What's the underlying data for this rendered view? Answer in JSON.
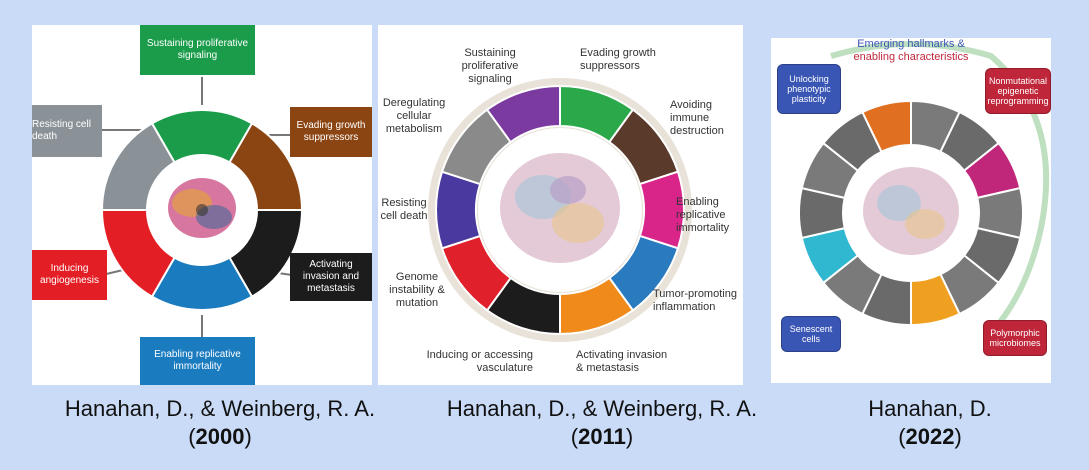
{
  "panels": {
    "p2000": {
      "labels": {
        "top": "Sustaining proliferative signaling",
        "left_top": "Resisting cell death",
        "right_top": "Evading growth suppressors",
        "left_bottom": "Inducing angiogenesis",
        "right_bottom": "Activating invasion and metastasis",
        "bottom": "Enabling replicative immortality"
      },
      "colors": {
        "top": "#1a9c4a",
        "right_top": "#8b4513",
        "right_bottom": "#1c1c1c",
        "bottom": "#1a7bbf",
        "left_bottom": "#e31e24",
        "left_top": "#8a9298"
      }
    },
    "p2011": {
      "labels": {
        "sustaining": "Sustaining proliferative signaling",
        "evading": "Evading growth suppressors",
        "avoiding": "Avoiding immune destruction",
        "enabling": "Enabling replicative immortality",
        "tumor": "Tumor-promoting inflammation",
        "activating": "Activating invasion & metastasis",
        "inducing": "Inducing or accessing vasculature",
        "genome": "Genome instability & mutation",
        "resisting": "Resisting cell death",
        "deregulating": "Deregulating cellular metabolism"
      }
    },
    "p2022": {
      "title_line1": "Emerging hallmarks &",
      "title_line2": "enabling characteristics",
      "labels": {
        "unlocking": "Unlocking phenotypic plasticity",
        "nonmutational": "Nonmutational epigenetic reprogramming",
        "senescent": "Senescent cells",
        "polymorphic": "Polymorphic microbiomes"
      },
      "colors": {
        "unlocking": "#3a56b5",
        "nonmutational": "#c0263a",
        "senescent": "#3a56b5",
        "polymorphic": "#c0263a"
      }
    }
  },
  "citations": [
    {
      "authors": "Hanahan, D., & Weinberg, R. A.",
      "year": "2000"
    },
    {
      "authors": "Hanahan, D., & Weinberg, R. A.",
      "year": "2011"
    },
    {
      "authors": "Hanahan, D.",
      "year": "2022"
    }
  ]
}
